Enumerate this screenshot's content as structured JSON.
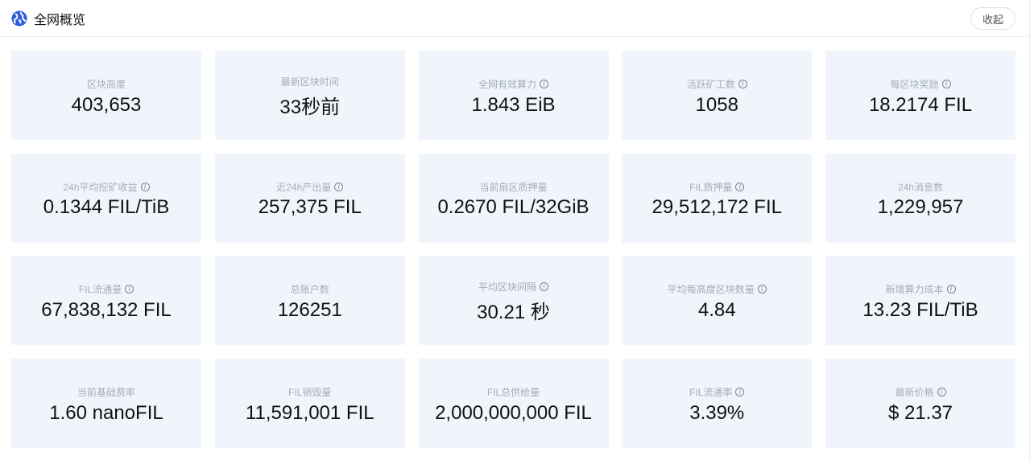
{
  "header": {
    "title": "全网概览",
    "collapse_label": "收起",
    "icon": "globe-icon"
  },
  "cards": [
    {
      "label": "区块高度",
      "value": "403,653",
      "info": false
    },
    {
      "label": "最新区块时间",
      "value": "33秒前",
      "info": false
    },
    {
      "label": "全网有效算力",
      "value": "1.843 EiB",
      "info": true
    },
    {
      "label": "活跃矿工数",
      "value": "1058",
      "info": true
    },
    {
      "label": "每区块奖励",
      "value": "18.2174 FIL",
      "info": true
    },
    {
      "label": "24h平均挖矿收益",
      "value": "0.1344 FIL/TiB",
      "info": true
    },
    {
      "label": "近24h产出量",
      "value": "257,375 FIL",
      "info": true
    },
    {
      "label": "当前扇区质押量",
      "value": "0.2670 FIL/32GiB",
      "info": false
    },
    {
      "label": "FIL质押量",
      "value": "29,512,172 FIL",
      "info": true
    },
    {
      "label": "24h消息数",
      "value": "1,229,957",
      "info": false
    },
    {
      "label": "FIL流通量",
      "value": "67,838,132 FIL",
      "info": true
    },
    {
      "label": "总账户数",
      "value": "126251",
      "info": false
    },
    {
      "label": "平均区块间隔",
      "value": "30.21 秒",
      "info": true
    },
    {
      "label": "平均每高度区块数量",
      "value": "4.84",
      "info": true
    },
    {
      "label": "新增算力成本",
      "value": "13.23 FIL/TiB",
      "info": true
    },
    {
      "label": "当前基础费率",
      "value": "1.60 nanoFIL",
      "info": false
    },
    {
      "label": "FIL销毁量",
      "value": "11,591,001 FIL",
      "info": false
    },
    {
      "label": "FIL总供给量",
      "value": "2,000,000,000 FIL",
      "info": false
    },
    {
      "label": "FIL流通率",
      "value": "3.39%",
      "info": true
    },
    {
      "label": "最新价格",
      "value": "$ 21.37",
      "info": true
    }
  ]
}
